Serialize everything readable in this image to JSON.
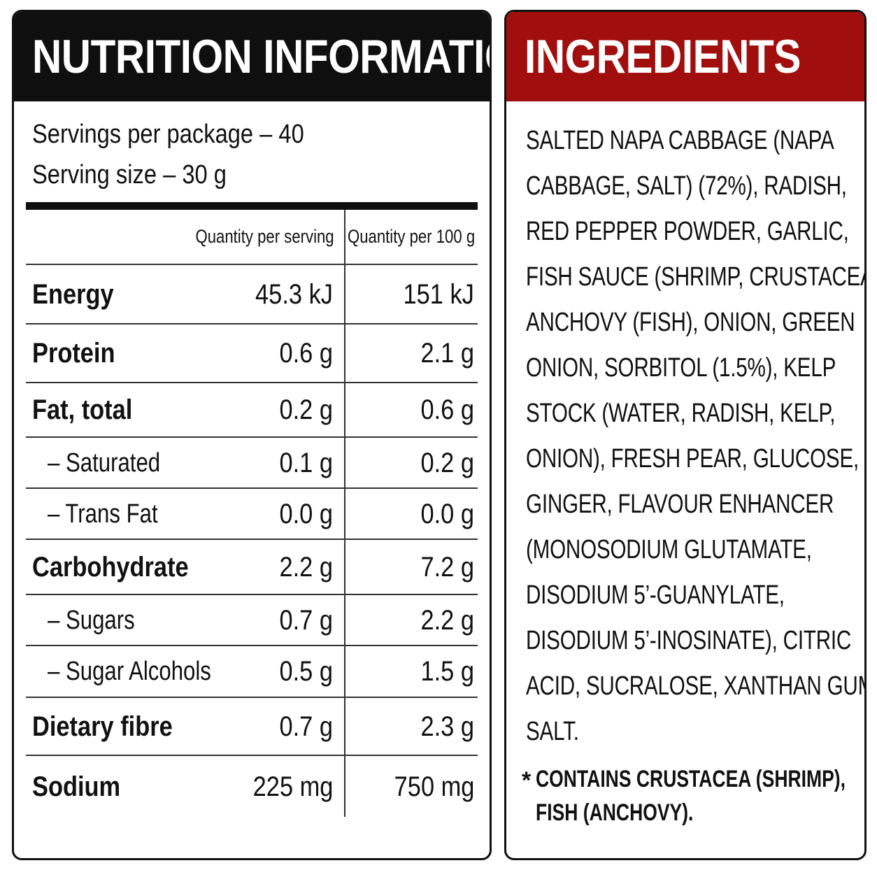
{
  "nutrition": {
    "title": "NUTRITION INFORMATION",
    "servings_per_package": "Servings per package – 40",
    "serving_size": "Serving size – 30 g",
    "column_headers": {
      "per_serving": "Quantity per serving",
      "per_100g": "Quantity per 100 g"
    },
    "rows": [
      {
        "label": "Energy",
        "per_serving": "45.3 kJ",
        "per_100g": "151 kJ",
        "level": "main"
      },
      {
        "label": "Protein",
        "per_serving": "0.6 g",
        "per_100g": "2.1 g",
        "level": "main"
      },
      {
        "label": "Fat, total",
        "per_serving": "0.2 g",
        "per_100g": "0.6 g",
        "level": "main"
      },
      {
        "label": "– Saturated",
        "per_serving": "0.1 g",
        "per_100g": "0.2 g",
        "level": "sub"
      },
      {
        "label": "– Trans Fat",
        "per_serving": "0.0 g",
        "per_100g": "0.0 g",
        "level": "sub"
      },
      {
        "label": "Carbohydrate",
        "per_serving": "2.2 g",
        "per_100g": "7.2 g",
        "level": "main"
      },
      {
        "label": "– Sugars",
        "per_serving": "0.7 g",
        "per_100g": "2.2 g",
        "level": "sub"
      },
      {
        "label": "– Sugar Alcohols",
        "per_serving": "0.5 g",
        "per_100g": "1.5 g",
        "level": "sub"
      },
      {
        "label": "Dietary fibre",
        "per_serving": "0.7 g",
        "per_100g": "2.3 g",
        "level": "main"
      },
      {
        "label": "Sodium",
        "per_serving": "225 mg",
        "per_100g": "750 mg",
        "level": "main"
      }
    ]
  },
  "ingredients": {
    "title": "INGREDIENTS",
    "lines": [
      "SALTED NAPA CABBAGE (NAPA",
      "CABBAGE, SALT) (72%), RADISH,",
      "RED PEPPER POWDER, GARLIC,",
      "FISH SAUCE (SHRIMP, CRUSTACEA),",
      "ANCHOVY (FISH), ONION, GREEN",
      "ONION, SORBITOL (1.5%), KELP",
      "STOCK (WATER, RADISH, KELP,",
      "ONION), FRESH PEAR, GLUCOSE,",
      "GINGER, FLAVOUR ENHANCER",
      "(MONOSODIUM GLUTAMATE,",
      "DISODIUM 5’-GUANYLATE,",
      "DISODIUM 5’-INOSINATE), CITRIC",
      "ACID, SUCRALOSE, XANTHAN GUM,",
      "SALT."
    ],
    "allergen_marker": "*",
    "allergen_lines": [
      "CONTAINS CRUSTACEA (SHRIMP),",
      "FISH (ANCHOVY)."
    ]
  },
  "colors": {
    "nutrition_header": "#0f0f0f",
    "ingredients_header": "#a00e0e"
  }
}
